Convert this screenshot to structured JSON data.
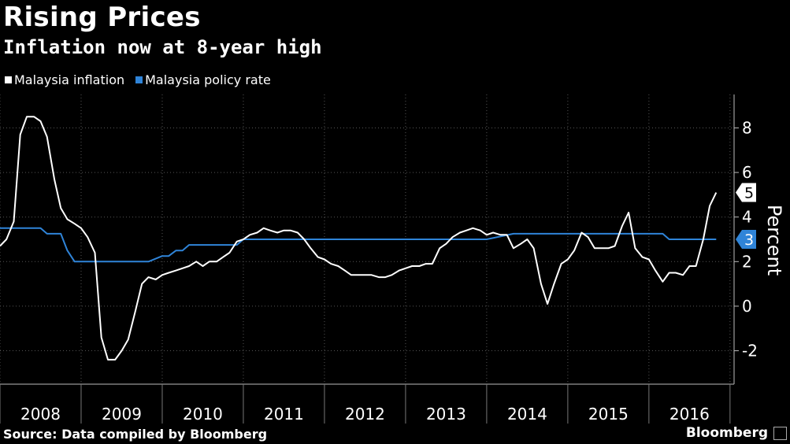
{
  "title": "Rising Prices",
  "subtitle": "Inflation now at 8-year high",
  "source": "Source: Data compiled by Bloomberg",
  "brand": "Bloomberg",
  "chart_data": {
    "type": "line",
    "title": "Rising Prices",
    "subtitle": "Inflation now at 8-year high",
    "ylabel": "Percent",
    "ylim": [
      -3.5,
      9.5
    ],
    "yticks": [
      -2,
      0,
      2,
      4,
      6,
      8
    ],
    "xlim": [
      2008,
      2017.05
    ],
    "year_labels": [
      "2008",
      "2009",
      "2010",
      "2011",
      "2012",
      "2013",
      "2014",
      "2015",
      "2016"
    ],
    "legend_position": "top-left",
    "series": [
      {
        "name": "Malaysia inflation",
        "color": "#ffffff",
        "end_label": "5",
        "points": [
          [
            2008.0,
            2.7
          ],
          [
            2008.08,
            3.0
          ],
          [
            2008.17,
            3.8
          ],
          [
            2008.25,
            7.7
          ],
          [
            2008.33,
            8.5
          ],
          [
            2008.42,
            8.5
          ],
          [
            2008.5,
            8.3
          ],
          [
            2008.58,
            7.6
          ],
          [
            2008.67,
            5.7
          ],
          [
            2008.75,
            4.4
          ],
          [
            2008.83,
            3.9
          ],
          [
            2008.92,
            3.7
          ],
          [
            2009.0,
            3.5
          ],
          [
            2009.08,
            3.1
          ],
          [
            2009.17,
            2.4
          ],
          [
            2009.25,
            -1.4
          ],
          [
            2009.33,
            -2.4
          ],
          [
            2009.42,
            -2.4
          ],
          [
            2009.5,
            -2.0
          ],
          [
            2009.58,
            -1.5
          ],
          [
            2009.67,
            -0.2
          ],
          [
            2009.75,
            1.0
          ],
          [
            2009.83,
            1.3
          ],
          [
            2009.92,
            1.2
          ],
          [
            2010.0,
            1.4
          ],
          [
            2010.08,
            1.5
          ],
          [
            2010.17,
            1.6
          ],
          [
            2010.25,
            1.7
          ],
          [
            2010.33,
            1.8
          ],
          [
            2010.42,
            2.0
          ],
          [
            2010.5,
            1.8
          ],
          [
            2010.58,
            2.0
          ],
          [
            2010.67,
            2.0
          ],
          [
            2010.75,
            2.2
          ],
          [
            2010.83,
            2.4
          ],
          [
            2010.92,
            2.9
          ],
          [
            2011.0,
            3.0
          ],
          [
            2011.08,
            3.2
          ],
          [
            2011.17,
            3.3
          ],
          [
            2011.25,
            3.5
          ],
          [
            2011.33,
            3.4
          ],
          [
            2011.42,
            3.3
          ],
          [
            2011.5,
            3.4
          ],
          [
            2011.58,
            3.4
          ],
          [
            2011.67,
            3.3
          ],
          [
            2011.75,
            3.0
          ],
          [
            2011.83,
            2.6
          ],
          [
            2011.92,
            2.2
          ],
          [
            2012.0,
            2.1
          ],
          [
            2012.08,
            1.9
          ],
          [
            2012.17,
            1.8
          ],
          [
            2012.25,
            1.6
          ],
          [
            2012.33,
            1.4
          ],
          [
            2012.42,
            1.4
          ],
          [
            2012.5,
            1.4
          ],
          [
            2012.58,
            1.4
          ],
          [
            2012.67,
            1.3
          ],
          [
            2012.75,
            1.3
          ],
          [
            2012.83,
            1.4
          ],
          [
            2012.92,
            1.6
          ],
          [
            2013.0,
            1.7
          ],
          [
            2013.08,
            1.8
          ],
          [
            2013.17,
            1.8
          ],
          [
            2013.25,
            1.9
          ],
          [
            2013.33,
            1.9
          ],
          [
            2013.42,
            2.6
          ],
          [
            2013.5,
            2.8
          ],
          [
            2013.58,
            3.1
          ],
          [
            2013.67,
            3.3
          ],
          [
            2013.75,
            3.4
          ],
          [
            2013.83,
            3.5
          ],
          [
            2013.92,
            3.4
          ],
          [
            2014.0,
            3.2
          ],
          [
            2014.08,
            3.3
          ],
          [
            2014.17,
            3.2
          ],
          [
            2014.25,
            3.2
          ],
          [
            2014.33,
            2.6
          ],
          [
            2014.42,
            2.8
          ],
          [
            2014.5,
            3.0
          ],
          [
            2014.58,
            2.6
          ],
          [
            2014.67,
            1.0
          ],
          [
            2014.75,
            0.1
          ],
          [
            2014.83,
            1.0
          ],
          [
            2014.92,
            1.9
          ],
          [
            2015.0,
            2.1
          ],
          [
            2015.08,
            2.5
          ],
          [
            2015.17,
            3.3
          ],
          [
            2015.25,
            3.1
          ],
          [
            2015.33,
            2.6
          ],
          [
            2015.42,
            2.6
          ],
          [
            2015.5,
            2.6
          ],
          [
            2015.58,
            2.7
          ],
          [
            2015.67,
            3.6
          ],
          [
            2015.75,
            4.2
          ],
          [
            2015.83,
            2.6
          ],
          [
            2015.92,
            2.2
          ],
          [
            2016.0,
            2.1
          ],
          [
            2016.08,
            1.6
          ],
          [
            2016.17,
            1.1
          ],
          [
            2016.25,
            1.5
          ],
          [
            2016.33,
            1.5
          ],
          [
            2016.42,
            1.4
          ],
          [
            2016.5,
            1.8
          ],
          [
            2016.58,
            1.8
          ],
          [
            2016.67,
            3.0
          ],
          [
            2016.75,
            4.5
          ],
          [
            2016.83,
            5.1
          ]
        ]
      },
      {
        "name": "Malaysia policy rate",
        "color": "#2f84d8",
        "end_label": "3",
        "points": [
          [
            2008.0,
            3.5
          ],
          [
            2008.5,
            3.5
          ],
          [
            2008.58,
            3.25
          ],
          [
            2008.75,
            3.25
          ],
          [
            2008.83,
            2.5
          ],
          [
            2008.92,
            2.0
          ],
          [
            2009.83,
            2.0
          ],
          [
            2010.0,
            2.25
          ],
          [
            2010.08,
            2.25
          ],
          [
            2010.17,
            2.5
          ],
          [
            2010.25,
            2.5
          ],
          [
            2010.33,
            2.75
          ],
          [
            2010.92,
            2.75
          ],
          [
            2011.0,
            3.0
          ],
          [
            2014.0,
            3.0
          ],
          [
            2014.33,
            3.25
          ],
          [
            2016.17,
            3.25
          ],
          [
            2016.25,
            3.0
          ],
          [
            2016.83,
            3.0
          ]
        ]
      }
    ]
  }
}
